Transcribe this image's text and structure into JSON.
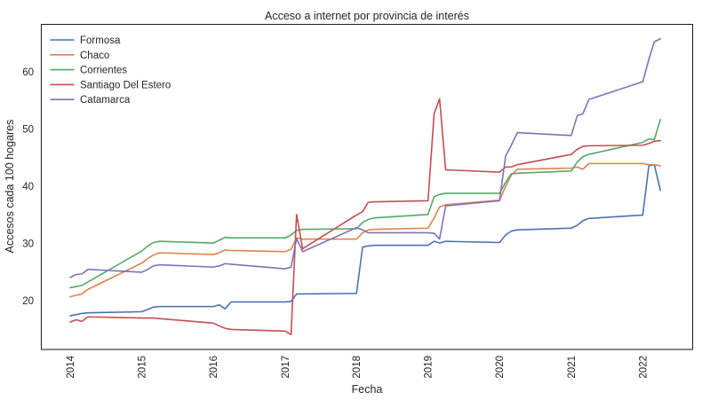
{
  "chart_data": {
    "type": "line",
    "title": "Acceso a internet por provincia de interés",
    "xlabel": "Fecha",
    "ylabel": "Accesos cada 100 hogares",
    "grid": false,
    "legend": "upper-left",
    "xlim": [
      "2013-08-04",
      "2022-09-15"
    ],
    "ylim": [
      11.5,
      68.4
    ],
    "xticks": [
      "2014",
      "2015",
      "2016",
      "2017",
      "2018",
      "2019",
      "2020",
      "2021",
      "2022"
    ],
    "yticks": [
      20,
      30,
      40,
      50,
      60
    ],
    "x": [
      "2014-01-01",
      "2014-02-01",
      "2014-03-01",
      "2014-04-01",
      "2015-01-01",
      "2015-02-01",
      "2015-03-01",
      "2015-04-01",
      "2016-01-01",
      "2016-02-01",
      "2016-03-01",
      "2016-04-01",
      "2017-01-01",
      "2017-02-01",
      "2017-03-01",
      "2017-04-01",
      "2018-01-01",
      "2018-02-01",
      "2018-03-01",
      "2018-04-01",
      "2019-01-01",
      "2019-02-01",
      "2019-03-01",
      "2019-04-01",
      "2020-01-01",
      "2020-02-01",
      "2020-03-01",
      "2020-04-01",
      "2021-01-01",
      "2021-02-01",
      "2021-03-01",
      "2021-04-01",
      "2022-01-01",
      "2022-02-01",
      "2022-03-01",
      "2022-04-01"
    ],
    "series": [
      {
        "name": "Formosa",
        "color": "#4c72b0",
        "values": [
          17.4,
          17.6,
          17.8,
          17.9,
          18.1,
          18.5,
          18.9,
          19.0,
          19.0,
          19.3,
          18.6,
          19.8,
          19.8,
          19.9,
          21.2,
          21.2,
          21.3,
          29.4,
          29.6,
          29.7,
          29.7,
          30.4,
          30.1,
          30.4,
          30.2,
          31.5,
          32.2,
          32.4,
          32.7,
          33.2,
          34.0,
          34.4,
          35.0,
          43.6,
          43.8,
          39.3
        ]
      },
      {
        "name": "Chaco",
        "color": "#dd8452",
        "values": [
          20.7,
          21.0,
          21.2,
          22.0,
          26.6,
          27.4,
          28.0,
          28.4,
          28.1,
          28.4,
          28.9,
          28.8,
          28.6,
          29.0,
          31.0,
          30.8,
          30.8,
          31.9,
          32.4,
          32.5,
          32.7,
          34.5,
          36.4,
          36.8,
          37.6,
          40.0,
          42.0,
          43.0,
          43.2,
          43.4,
          43.0,
          44.0,
          44.0,
          43.8,
          43.8,
          43.6
        ]
      },
      {
        "name": "Corrientes",
        "color": "#55a868",
        "values": [
          22.3,
          22.5,
          22.7,
          23.3,
          28.7,
          29.6,
          30.2,
          30.4,
          30.1,
          30.6,
          31.1,
          31.0,
          31.0,
          31.5,
          32.3,
          32.5,
          32.6,
          33.7,
          34.2,
          34.5,
          35.1,
          38.2,
          38.6,
          38.8,
          38.8,
          40.7,
          42.2,
          42.3,
          42.7,
          44.3,
          45.2,
          45.6,
          47.7,
          48.3,
          48.2,
          51.7
        ]
      },
      {
        "name": "Santiago Del Estero",
        "color": "#c44e52",
        "values": [
          16.3,
          16.7,
          16.4,
          17.2,
          17.0,
          17.0,
          17.0,
          16.9,
          16.1,
          15.6,
          15.2,
          15.0,
          14.7,
          14.1,
          35.1,
          29.1,
          35.0,
          35.6,
          37.2,
          37.3,
          37.5,
          52.7,
          55.3,
          42.9,
          42.5,
          43.4,
          43.4,
          43.8,
          45.6,
          46.5,
          47.0,
          47.1,
          47.2,
          47.5,
          47.9,
          48.0
        ]
      },
      {
        "name": "Catamarca",
        "color": "#8172b3",
        "values": [
          24.1,
          24.6,
          24.7,
          25.5,
          25.0,
          25.5,
          26.1,
          26.3,
          25.9,
          26.1,
          26.5,
          26.4,
          25.6,
          25.9,
          30.9,
          28.6,
          32.8,
          32.4,
          31.9,
          31.9,
          31.9,
          31.8,
          30.8,
          36.6,
          37.5,
          45.3,
          47.2,
          49.4,
          48.9,
          52.4,
          52.7,
          55.2,
          58.3,
          62.2,
          65.3,
          65.8
        ]
      }
    ]
  }
}
